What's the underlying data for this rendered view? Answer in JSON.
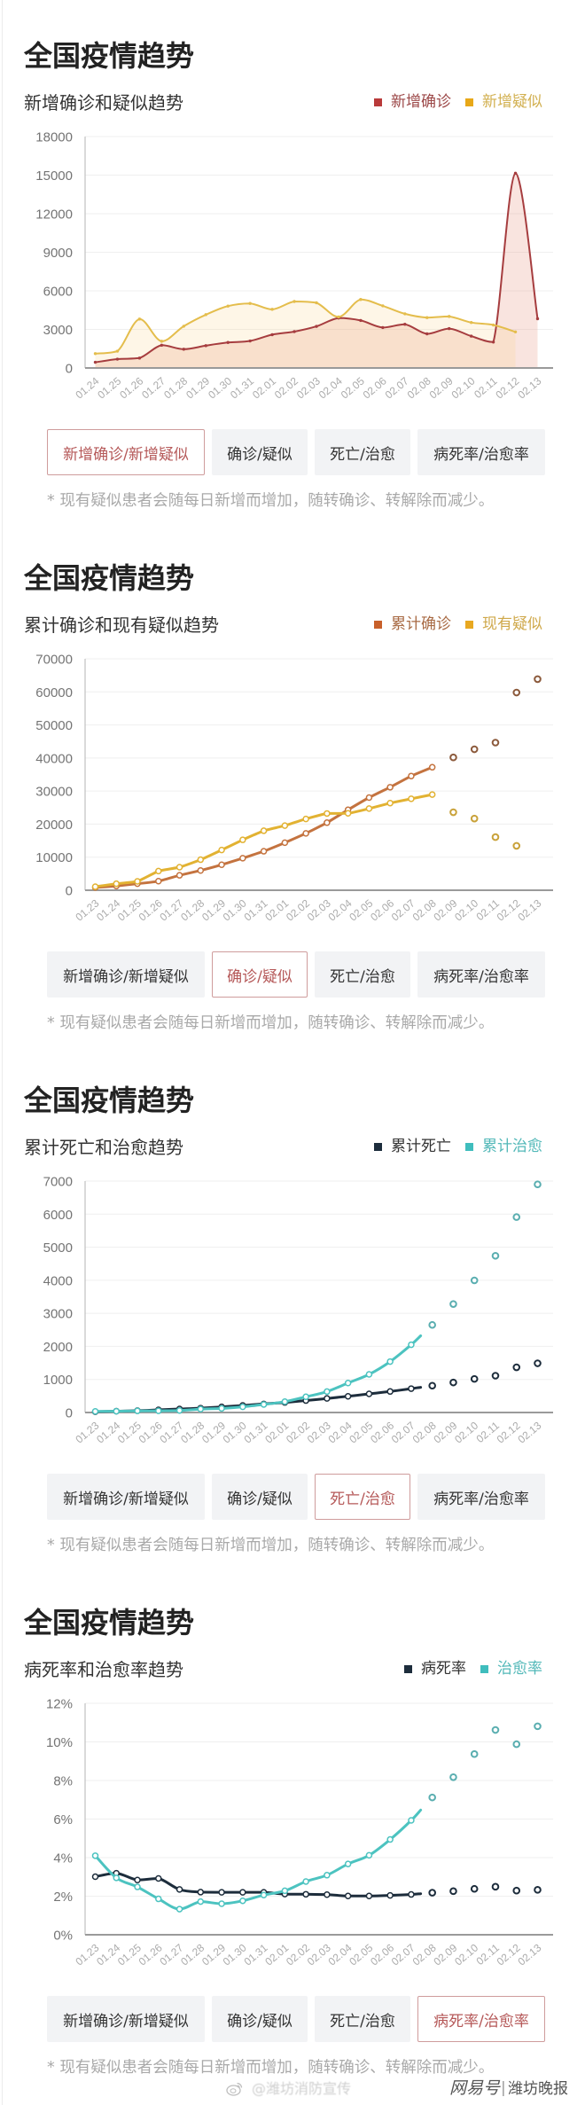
{
  "tabs": [
    {
      "label": "新增确诊/新增疑似"
    },
    {
      "label": "确诊/疑似"
    },
    {
      "label": "死亡/治愈"
    },
    {
      "label": "病死率/治愈率"
    }
  ],
  "panels": [
    {
      "note": "* 现有疑似患者会随每日新增而增加，随转确诊、转解除而减少。",
      "active_tab": 0
    },
    {
      "note": "* 现有疑似患者会随每日新增而增加，随转确诊、转解除而减少。",
      "active_tab": 1
    },
    {
      "note": "* 现有疑似患者会随每日新增而增加，随转确诊、转解除而减少。",
      "active_tab": 2
    },
    {
      "note": "* 现有疑似患者会随每日新增而增加，随转确诊、转解除而减少。",
      "active_tab": 3
    }
  ],
  "footer": {
    "weibo_icon": "weibo-icon",
    "weibo_handle": "@潍坊消防宣传",
    "platform": "网易号",
    "separator": "|",
    "source": "潍坊晚报"
  },
  "chart_data": [
    {
      "type": "area",
      "title": "全国疫情趋势",
      "subtitle": "新增确诊和疑似趋势",
      "xlabel": "",
      "ylabel": "",
      "grid": true,
      "legend_position": "top-right",
      "categories": [
        "01.24",
        "01.25",
        "01.26",
        "01.27",
        "01.28",
        "01.29",
        "01.30",
        "01.31",
        "02.01",
        "02.02",
        "02.03",
        "02.04",
        "02.05",
        "02.06",
        "02.07",
        "02.08",
        "02.09",
        "02.10",
        "02.11",
        "02.12",
        "02.13"
      ],
      "ylim": [
        0,
        18000
      ],
      "yticks": [
        0,
        3000,
        6000,
        9000,
        12000,
        15000,
        18000
      ],
      "ytick_labels": [
        "0",
        "3000",
        "6000",
        "9000",
        "12000",
        "15000",
        "18000"
      ],
      "smooth": 1,
      "line_width": 2,
      "marker": "dot",
      "series": [
        {
          "name": "新增确诊",
          "values": [
            444,
            688,
            769,
            1771,
            1459,
            1737,
            1982,
            2102,
            2590,
            2829,
            3235,
            3887,
            3694,
            3143,
            3399,
            2656,
            3062,
            2478,
            2015,
            15152,
            3830
          ],
          "color": "#a63d3f",
          "legend_color": "#b93a3a",
          "text_color": "#9c4848",
          "dot_color": "#a63d3f",
          "fill": "rgba(232,150,130,0.26)"
        },
        {
          "name": "新增疑似",
          "values": [
            1118,
            1309,
            3806,
            2077,
            3248,
            4148,
            4812,
            5019,
            4562,
            5173,
            5072,
            3971,
            5328,
            4833,
            4214,
            3916,
            4008,
            3536,
            3342,
            2807,
            null
          ],
          "color": "#e4bd4c",
          "legend_color": "#e8a818",
          "text_color": "#d2b050",
          "dot_color": "#e4bd4c",
          "fill": "rgba(247,205,120,0.18)"
        }
      ]
    },
    {
      "type": "line",
      "title": "全国疫情趋势",
      "subtitle": "累计确诊和现有疑似趋势",
      "xlabel": "",
      "ylabel": "",
      "grid": true,
      "legend_position": "top-right",
      "categories": [
        "01.23",
        "01.24",
        "01.25",
        "01.26",
        "01.27",
        "01.28",
        "01.29",
        "01.30",
        "01.31",
        "02.01",
        "02.02",
        "02.03",
        "02.04",
        "02.05",
        "02.06",
        "02.07",
        "02.08",
        "02.09",
        "02.10",
        "02.11",
        "02.12",
        "02.13"
      ],
      "ylim": [
        0,
        70000
      ],
      "yticks": [
        0,
        10000,
        20000,
        30000,
        40000,
        50000,
        60000,
        70000
      ],
      "ytick_labels": [
        "0",
        "10000",
        "20000",
        "30000",
        "40000",
        "50000",
        "60000",
        "70000"
      ],
      "smooth": 0.4,
      "line_width": 3,
      "marker": "ring",
      "solid_until": 16,
      "series": [
        {
          "name": "累计确诊",
          "values": [
            830,
            1287,
            1975,
            2744,
            4515,
            5974,
            7711,
            9692,
            11791,
            14380,
            17205,
            20438,
            24324,
            28018,
            31161,
            34546,
            37198,
            40171,
            42638,
            44653,
            59804,
            63851
          ],
          "color": "#c4733f",
          "legend_color": "#c8602a",
          "text_color": "#a86a44",
          "dot_color": "#8c5a3c"
        },
        {
          "name": "现有疑似",
          "values": [
            1072,
            1965,
            2684,
            5794,
            6973,
            9239,
            12167,
            15238,
            17988,
            19544,
            21558,
            23214,
            23260,
            24702,
            26359,
            27657,
            28942,
            23589,
            21675,
            16067,
            13435,
            null
          ],
          "color": "#e2b232",
          "legend_color": "#e8a820",
          "text_color": "#cfa84a",
          "dot_color": "#c9a23a"
        }
      ]
    },
    {
      "type": "line",
      "title": "全国疫情趋势",
      "subtitle": "累计死亡和治愈趋势",
      "xlabel": "",
      "ylabel": "",
      "grid": true,
      "legend_position": "top-right",
      "categories": [
        "01.23",
        "01.24",
        "01.25",
        "01.26",
        "01.27",
        "01.28",
        "01.29",
        "01.30",
        "01.31",
        "02.01",
        "02.02",
        "02.03",
        "02.04",
        "02.05",
        "02.06",
        "02.07",
        "02.08",
        "02.09",
        "02.10",
        "02.11",
        "02.12",
        "02.13"
      ],
      "ylim": [
        0,
        7000
      ],
      "yticks": [
        0,
        1000,
        2000,
        3000,
        4000,
        5000,
        6000,
        7000
      ],
      "ytick_labels": [
        "0",
        "1000",
        "2000",
        "3000",
        "4000",
        "5000",
        "6000",
        "7000"
      ],
      "smooth": 1,
      "line_width": 3,
      "marker": "ring",
      "solid_until": 15,
      "extend_half": true,
      "series": [
        {
          "name": "累计死亡",
          "values": [
            25,
            41,
            56,
            80,
            106,
            132,
            170,
            213,
            259,
            304,
            361,
            425,
            490,
            563,
            636,
            722,
            811,
            908,
            1016,
            1113,
            1367,
            1488
          ],
          "color": "#1d2d3c",
          "legend_color": "#1d2d3c",
          "text_color": "#333333",
          "dot_color": "#1d2d3c"
        },
        {
          "name": "累计治愈",
          "values": [
            34,
            38,
            49,
            51,
            60,
            103,
            124,
            171,
            243,
            328,
            475,
            632,
            892,
            1153,
            1540,
            2050,
            2649,
            3281,
            3996,
            4740,
            5911,
            6900
          ],
          "color": "#4cc3c0",
          "legend_color": "#3fbdbd",
          "text_color": "#52b8b8",
          "dot_color": "#5aaeb0"
        }
      ]
    },
    {
      "type": "line",
      "title": "全国疫情趋势",
      "subtitle": "病死率和治愈率趋势",
      "xlabel": "",
      "ylabel": "",
      "grid": true,
      "legend_position": "top-right",
      "categories": [
        "01.23",
        "01.24",
        "01.25",
        "01.26",
        "01.27",
        "01.28",
        "01.29",
        "01.30",
        "01.31",
        "02.01",
        "02.02",
        "02.03",
        "02.04",
        "02.05",
        "02.06",
        "02.07",
        "02.08",
        "02.09",
        "02.10",
        "02.11",
        "02.12",
        "02.13"
      ],
      "ylim": [
        0,
        12
      ],
      "yticks": [
        0,
        2,
        4,
        6,
        8,
        10,
        12
      ],
      "ytick_labels": [
        "0%",
        "2%",
        "4%",
        "6%",
        "8%",
        "10%",
        "12%"
      ],
      "smooth": 1,
      "line_width": 3,
      "marker": "ring",
      "solid_until": 15,
      "extend_half": true,
      "series": [
        {
          "name": "病死率",
          "values": [
            3.01,
            3.19,
            2.84,
            2.92,
            2.35,
            2.21,
            2.2,
            2.2,
            2.2,
            2.11,
            2.1,
            2.08,
            2.01,
            2.01,
            2.04,
            2.09,
            2.18,
            2.26,
            2.38,
            2.49,
            2.29,
            2.33
          ],
          "color": "#1d2d3c",
          "legend_color": "#1d2d3c",
          "text_color": "#333333",
          "dot_color": "#1d2d3c"
        },
        {
          "name": "治愈率",
          "values": [
            4.1,
            2.95,
            2.48,
            1.86,
            1.33,
            1.72,
            1.61,
            1.76,
            2.06,
            2.28,
            2.76,
            3.09,
            3.67,
            4.12,
            4.94,
            5.93,
            7.12,
            8.17,
            9.37,
            10.62,
            9.88,
            10.81
          ],
          "color": "#4cc3c0",
          "legend_color": "#3fbdbd",
          "text_color": "#52b8b8",
          "dot_color": "#5aaeb0"
        }
      ]
    }
  ]
}
